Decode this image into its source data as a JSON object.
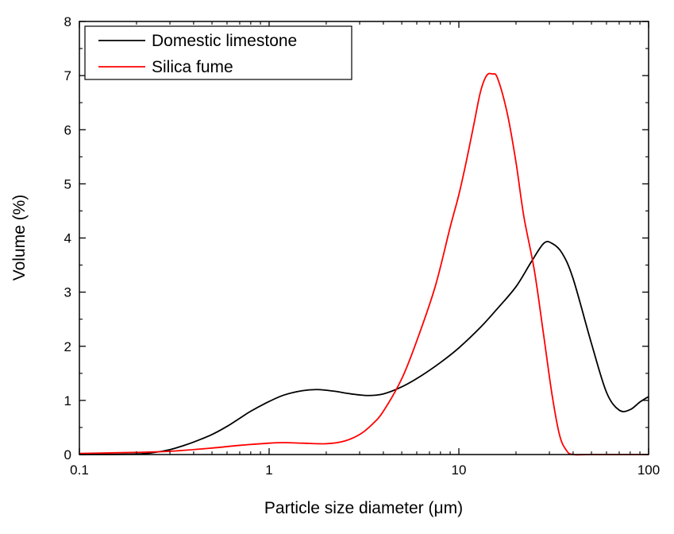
{
  "chart_data": {
    "type": "line",
    "title": "",
    "xlabel": "Particle size diameter (μm)",
    "ylabel": "Volume (%)",
    "xscale": "log",
    "xlim": [
      0.1,
      100
    ],
    "ylim": [
      0,
      8
    ],
    "xticks": [
      0.1,
      1,
      10,
      100
    ],
    "xtick_labels": [
      "0.1",
      "1",
      "10",
      "100"
    ],
    "yticks": [
      0,
      1,
      2,
      3,
      4,
      5,
      6,
      7,
      8
    ],
    "ytick_labels": [
      "0",
      "1",
      "2",
      "3",
      "4",
      "5",
      "6",
      "7",
      "8"
    ],
    "legend_position": "top-left",
    "grid": false,
    "series": [
      {
        "name": "Domestic limestone",
        "color": "#000000",
        "x": [
          0.1,
          0.2,
          0.25,
          0.3,
          0.35,
          0.4,
          0.5,
          0.6,
          0.7,
          0.8,
          1.0,
          1.2,
          1.5,
          1.8,
          2.2,
          2.7,
          3.3,
          4.0,
          5.0,
          6.3,
          8.0,
          10,
          13,
          16,
          20,
          24,
          28,
          31,
          35,
          40,
          50,
          60,
          70,
          80,
          90,
          100
        ],
        "y": [
          0,
          0.01,
          0.04,
          0.09,
          0.16,
          0.23,
          0.37,
          0.52,
          0.67,
          0.8,
          0.98,
          1.1,
          1.18,
          1.2,
          1.17,
          1.12,
          1.09,
          1.12,
          1.25,
          1.45,
          1.7,
          1.97,
          2.35,
          2.7,
          3.1,
          3.55,
          3.9,
          3.9,
          3.72,
          3.25,
          2.05,
          1.15,
          0.82,
          0.83,
          0.97,
          1.07
        ]
      },
      {
        "name": "Silica fume",
        "color": "#ff0000",
        "x": [
          0.1,
          0.2,
          0.3,
          0.5,
          0.7,
          1.0,
          1.2,
          1.5,
          2.0,
          2.5,
          3.0,
          3.5,
          4.0,
          5.0,
          6.0,
          7.5,
          9.0,
          10,
          11,
          12,
          13,
          14,
          15,
          16,
          18,
          20,
          22,
          25,
          28,
          31,
          34,
          37,
          40,
          50,
          100
        ],
        "y": [
          0.02,
          0.04,
          0.06,
          0.12,
          0.17,
          0.21,
          0.22,
          0.21,
          0.2,
          0.25,
          0.37,
          0.56,
          0.8,
          1.4,
          2.1,
          3.1,
          4.2,
          4.8,
          5.45,
          6.1,
          6.7,
          7.0,
          7.03,
          6.95,
          6.3,
          5.4,
          4.4,
          3.4,
          2.2,
          1.1,
          0.35,
          0.07,
          0.0,
          0.0,
          0.0
        ]
      }
    ]
  }
}
